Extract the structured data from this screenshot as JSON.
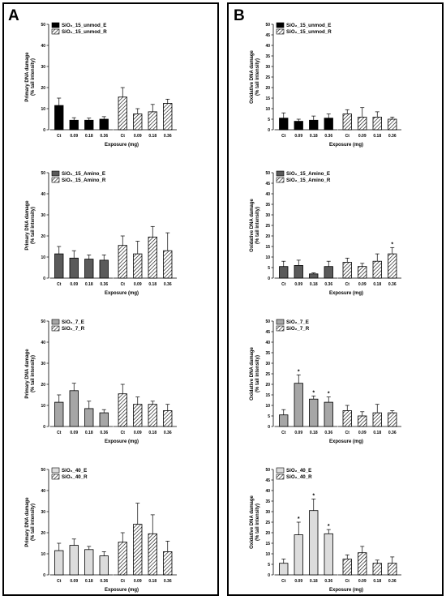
{
  "panels": [
    {
      "letter": "A"
    },
    {
      "letter": "B"
    }
  ],
  "fills": {
    "unmod": "#000000",
    "amino": "#5a5a5a",
    "seven": "#a6a6a6",
    "forty": "#dcdcdc"
  },
  "chart_data": [
    {
      "type": "bar",
      "panel": "A",
      "row": 0,
      "fill": "unmod",
      "ylabel": "Primary DNA damage",
      "ylabel2": "(% tail intensity)",
      "xlabel": "Exposure (mg)",
      "ylim": [
        0,
        50
      ],
      "yticks": [
        0,
        10,
        20,
        30,
        40,
        50
      ],
      "categories": [
        "Ct",
        "0.09",
        "0.18",
        "0.36"
      ],
      "series": [
        {
          "name": "SiO₂_15_unmod_E",
          "values": [
            11.5,
            4.5,
            4.5,
            5
          ],
          "errors": [
            3.5,
            1.2,
            1.0,
            1.2
          ],
          "stars": [
            false,
            false,
            false,
            false
          ]
        },
        {
          "name": "SiO₂_15_unmod_R",
          "values": [
            15.5,
            7.5,
            8.5,
            12.5
          ],
          "errors": [
            4.5,
            2.5,
            3.5,
            2.0
          ],
          "stars": [
            false,
            false,
            false,
            false
          ]
        }
      ]
    },
    {
      "type": "bar",
      "panel": "A",
      "row": 1,
      "fill": "amino",
      "ylabel": "Primary DNA damage",
      "ylabel2": "(% tail intensity)",
      "xlabel": "Exposure (mg)",
      "ylim": [
        0,
        50
      ],
      "yticks": [
        0,
        10,
        20,
        30,
        40,
        50
      ],
      "categories": [
        "Ct",
        "0.09",
        "0.18",
        "0.36"
      ],
      "series": [
        {
          "name": "SiO₂_15_Amino_E",
          "values": [
            11.5,
            9.5,
            9,
            8.5
          ],
          "errors": [
            3.5,
            3.5,
            2.0,
            2.5
          ],
          "stars": [
            false,
            false,
            false,
            false
          ]
        },
        {
          "name": "SiO₂_15_Amino_R",
          "values": [
            15.5,
            11.5,
            19.5,
            13
          ],
          "errors": [
            4.5,
            6.0,
            5.0,
            8.5
          ],
          "stars": [
            false,
            false,
            false,
            false
          ]
        }
      ]
    },
    {
      "type": "bar",
      "panel": "A",
      "row": 2,
      "fill": "seven",
      "ylabel": "Primary DNA damage",
      "ylabel2": "(% tail intensity)",
      "xlabel": "Exposure (mg)",
      "ylim": [
        0,
        50
      ],
      "yticks": [
        0,
        10,
        20,
        30,
        40,
        50
      ],
      "categories": [
        "Ct",
        "0.09",
        "0.18",
        "0.36"
      ],
      "series": [
        {
          "name": "SiO₂_7_E",
          "values": [
            11.5,
            17,
            8.5,
            6.5
          ],
          "errors": [
            3.5,
            3.5,
            3.5,
            1.5
          ],
          "stars": [
            false,
            false,
            false,
            false
          ]
        },
        {
          "name": "SiO₂_7_R",
          "values": [
            15.5,
            10.5,
            10.5,
            7.5
          ],
          "errors": [
            4.5,
            3.5,
            1.5,
            3.0
          ],
          "stars": [
            false,
            false,
            false,
            false
          ]
        }
      ]
    },
    {
      "type": "bar",
      "panel": "A",
      "row": 3,
      "fill": "forty",
      "ylabel": "Primary DNA damage",
      "ylabel2": "(% tail intensity)",
      "xlabel": "Exposure (mg)",
      "ylim": [
        0,
        50
      ],
      "yticks": [
        0,
        10,
        20,
        30,
        40,
        50
      ],
      "categories": [
        "Ct",
        "0.09",
        "0.18",
        "0.36"
      ],
      "series": [
        {
          "name": "SiO₂_40_E",
          "values": [
            11.5,
            14,
            12,
            9
          ],
          "errors": [
            3.5,
            3.0,
            1.5,
            2.0
          ],
          "stars": [
            false,
            false,
            false,
            false
          ]
        },
        {
          "name": "SiO₂_40_R",
          "values": [
            15.5,
            24,
            19.5,
            11
          ],
          "errors": [
            4.5,
            10.0,
            9.0,
            5.0
          ],
          "stars": [
            false,
            false,
            false,
            false
          ]
        }
      ]
    },
    {
      "type": "bar",
      "panel": "B",
      "row": 0,
      "fill": "unmod",
      "ylabel": "Oxidative DNA damage",
      "ylabel2": "(% tail intensity)",
      "xlabel": "Exposure (mg)",
      "ylim": [
        0,
        50
      ],
      "yticks": [
        0,
        5,
        10,
        15,
        20,
        25,
        30,
        35,
        40,
        45,
        50
      ],
      "categories": [
        "Ct",
        "0.09",
        "0.18",
        "0.36"
      ],
      "series": [
        {
          "name": "SiO₂_15_unmod_E",
          "values": [
            5.5,
            4,
            4.5,
            5.5
          ],
          "errors": [
            2.5,
            1.0,
            2.0,
            2.0
          ],
          "stars": [
            false,
            false,
            false,
            false
          ]
        },
        {
          "name": "SiO₂_15_unmod_R",
          "values": [
            7.5,
            6,
            6,
            5
          ],
          "errors": [
            2.0,
            4.5,
            2.5,
            1.0
          ],
          "stars": [
            false,
            false,
            false,
            false
          ]
        }
      ]
    },
    {
      "type": "bar",
      "panel": "B",
      "row": 1,
      "fill": "amino",
      "ylabel": "Oxidative DNA damage",
      "ylabel2": "(% tail intensity)",
      "xlabel": "Exposure (mg)",
      "ylim": [
        0,
        50
      ],
      "yticks": [
        0,
        5,
        10,
        15,
        20,
        25,
        30,
        35,
        40,
        45,
        50
      ],
      "categories": [
        "Ct",
        "0.09",
        "0.18",
        "0.36"
      ],
      "series": [
        {
          "name": "SiO₂_15_Amino_E",
          "values": [
            5.5,
            6,
            2,
            5.5
          ],
          "errors": [
            2.5,
            2.5,
            0.5,
            2.5
          ],
          "stars": [
            false,
            false,
            false,
            false
          ]
        },
        {
          "name": "SiO₂_15_Amino_R",
          "values": [
            7.5,
            5.5,
            8,
            11.5
          ],
          "errors": [
            2.0,
            1.5,
            3.5,
            3.0
          ],
          "stars": [
            false,
            false,
            false,
            true
          ]
        }
      ]
    },
    {
      "type": "bar",
      "panel": "B",
      "row": 2,
      "fill": "seven",
      "ylabel": "Oxidative DNA damage",
      "ylabel2": "(% tail intensity)",
      "xlabel": "Exposure (mg)",
      "ylim": [
        0,
        50
      ],
      "yticks": [
        0,
        5,
        10,
        15,
        20,
        25,
        30,
        35,
        40,
        45,
        50
      ],
      "categories": [
        "Ct",
        "0.09",
        "0.18",
        "0.36"
      ],
      "series": [
        {
          "name": "SiO₂_7_E",
          "values": [
            5.5,
            20.5,
            13,
            11.5
          ],
          "errors": [
            2.5,
            4.0,
            1.5,
            2.5
          ],
          "stars": [
            false,
            true,
            true,
            true
          ]
        },
        {
          "name": "SiO₂_7_R",
          "values": [
            7.5,
            5,
            6.5,
            6.5
          ],
          "errors": [
            2.5,
            2.0,
            4.0,
            1.0
          ],
          "stars": [
            false,
            false,
            false,
            false
          ]
        }
      ]
    },
    {
      "type": "bar",
      "panel": "B",
      "row": 3,
      "fill": "forty",
      "ylabel": "Oxidative DNA damage",
      "ylabel2": "(% tail intensity)",
      "xlabel": "Exposure (mg)",
      "ylim": [
        0,
        50
      ],
      "yticks": [
        0,
        5,
        10,
        15,
        20,
        25,
        30,
        35,
        40,
        45,
        50
      ],
      "categories": [
        "Ct",
        "0.09",
        "0.18",
        "0.36"
      ],
      "series": [
        {
          "name": "SiO₂_40_E",
          "values": [
            5.5,
            19,
            30.5,
            19.5
          ],
          "errors": [
            2.0,
            6.0,
            5.5,
            2.0
          ],
          "stars": [
            false,
            true,
            true,
            true
          ]
        },
        {
          "name": "SiO₂_40_R",
          "values": [
            7.5,
            10.5,
            5.5,
            5.5
          ],
          "errors": [
            2.0,
            3.0,
            1.5,
            3.0
          ],
          "stars": [
            false,
            false,
            false,
            false
          ]
        }
      ]
    }
  ]
}
